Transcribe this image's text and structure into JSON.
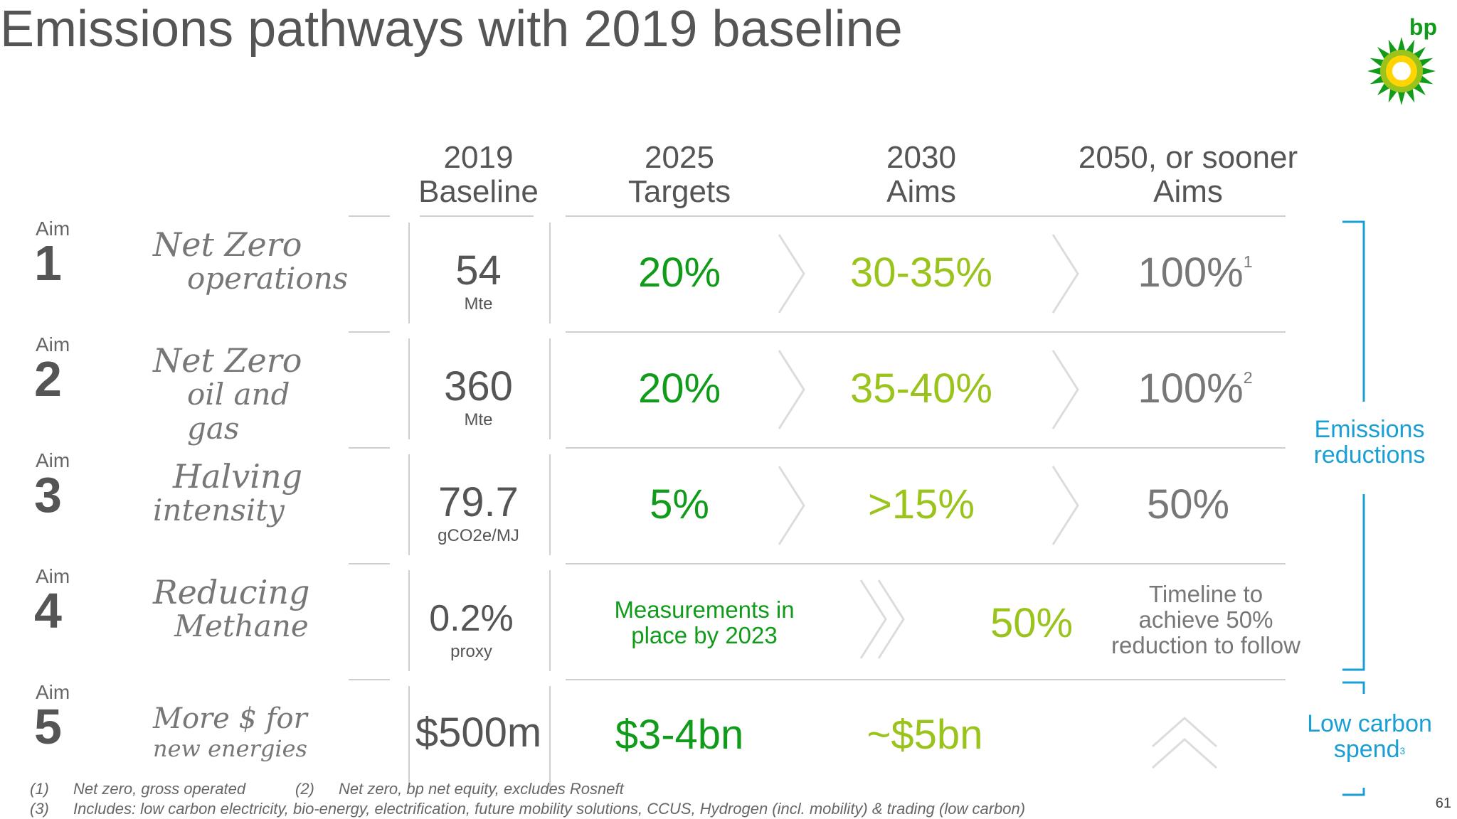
{
  "title": "Emissions pathways with 2019 baseline",
  "logo_text": "bp",
  "columns": [
    {
      "line1": "2019",
      "line2": "Baseline"
    },
    {
      "line1": "2025",
      "line2": "Targets"
    },
    {
      "line1": "2030",
      "line2": "Aims"
    },
    {
      "line1": "2050, or sooner",
      "line2": "Aims"
    }
  ],
  "aim_label": "Aim",
  "rows": [
    {
      "num": "1",
      "script1": "Net Zero",
      "script2": "operations",
      "baseline": "54",
      "unit": "Mte",
      "v2025": "20%",
      "v2030": "30-35%",
      "v2050": "100%",
      "v2050_sup": "1"
    },
    {
      "num": "2",
      "script1": "Net Zero",
      "script2": "oil and gas",
      "baseline": "360",
      "unit": "Mte",
      "v2025": "20%",
      "v2030": "35-40%",
      "v2050": "100%",
      "v2050_sup": "2"
    },
    {
      "num": "3",
      "script1": "Halving",
      "script2": "intensity",
      "baseline": "79.7",
      "unit": "gCO2e/MJ",
      "v2025": "5%",
      "v2030": ">15%",
      "v2050": "50%"
    },
    {
      "num": "4",
      "script1": "Reducing",
      "script2": "Methane",
      "baseline": "0.2%",
      "unit": "proxy",
      "v2025_line1": "Measurements in",
      "v2025_line2": "place by 2023",
      "v2030": "50%",
      "v2050_line1": "Timeline to",
      "v2050_line2": "achieve 50%",
      "v2050_line3": "reduction to follow"
    },
    {
      "num": "5",
      "script1": "More $ for",
      "script2": "new energies",
      "baseline": "$500m",
      "v2025": "$3-4bn",
      "v2030": "~$5bn"
    }
  ],
  "brackets": {
    "emissions_line1": "Emissions",
    "emissions_line2": "reductions",
    "spend_line1": "Low carbon",
    "spend_line2": "spend",
    "spend_sup": "3"
  },
  "footnotes": {
    "f1_num": "(1)",
    "f1_text": "Net zero, gross operated",
    "f2_num": "(2)",
    "f2_text": "Net zero, bp net equity, excludes Rosneft",
    "f3_num": "(3)",
    "f3_text": "Includes: low carbon electricity, bio-energy, electrification, future mobility solutions, CCUS, Hydrogen (incl. mobility) & trading (low carbon)"
  },
  "page_number": "61",
  "colors": {
    "green": "#119b1a",
    "lime": "#9ac31c",
    "grey": "#777777",
    "blue": "#1a9fd4"
  }
}
